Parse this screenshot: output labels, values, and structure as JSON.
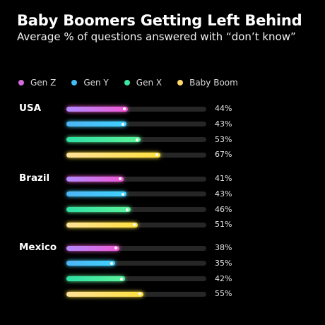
{
  "header": {
    "title": "Baby Boomers Getting Left Behind",
    "subtitle": "Average % of questions answered with “don’t know”"
  },
  "colors": {
    "Gen Z": [
      "#b18bff",
      "#f05ad6"
    ],
    "Gen Y": [
      "#4fb4f5",
      "#3fd2ff"
    ],
    "Gen X": [
      "#2fe0a6",
      "#5cf29a"
    ],
    "Baby Boom": [
      "#ffe19a",
      "#ffe03d"
    ]
  },
  "chart_data": {
    "type": "bar",
    "orientation": "horizontal",
    "title": "Baby Boomers Getting Left Behind",
    "subtitle": "Average % of questions answered with “don’t know”",
    "legend": [
      "Gen Z",
      "Gen Y",
      "Gen X",
      "Baby Boom"
    ],
    "legend_position": "top-left",
    "xlim": [
      0,
      100
    ],
    "unit": "%",
    "categories": [
      "USA",
      "Brazil",
      "Mexico"
    ],
    "series": [
      {
        "name": "Gen Z",
        "values": [
          44,
          41,
          38
        ]
      },
      {
        "name": "Gen Y",
        "values": [
          43,
          43,
          35
        ]
      },
      {
        "name": "Gen X",
        "values": [
          53,
          46,
          42
        ]
      },
      {
        "name": "Baby Boom",
        "values": [
          67,
          51,
          55
        ]
      }
    ]
  }
}
